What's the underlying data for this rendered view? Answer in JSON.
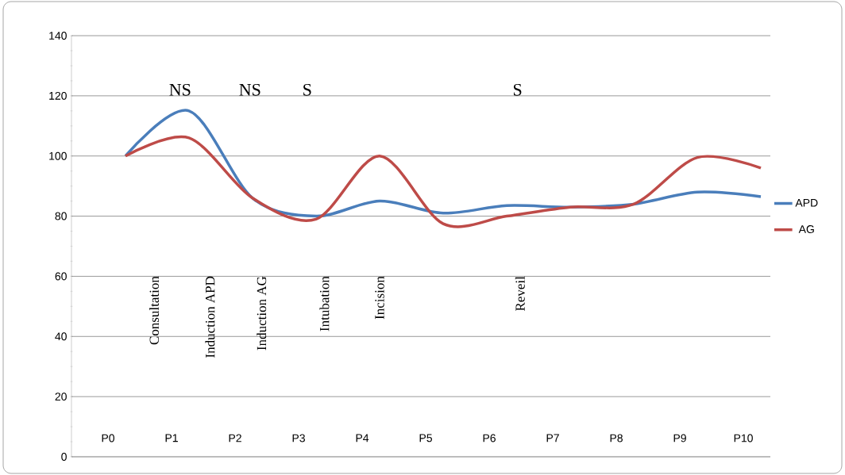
{
  "chart_data": {
    "type": "line",
    "categories": [
      "P0",
      "P1",
      "P2",
      "P3",
      "P4",
      "P5",
      "P6",
      "P7",
      "P8",
      "P9",
      "P10"
    ],
    "series": [
      {
        "name": "APD",
        "color": "#4a7ebb",
        "values": [
          100,
          115,
          86,
          80,
          85,
          81,
          83.5,
          83,
          84,
          88,
          86.5
        ]
      },
      {
        "name": "AG",
        "color": "#be4b48",
        "values": [
          100,
          106,
          86,
          79,
          100,
          77.5,
          80,
          83,
          84,
          99.5,
          96
        ]
      }
    ],
    "ylim": [
      0,
      140
    ],
    "yticks": [
      0,
      20,
      40,
      60,
      80,
      100,
      120,
      140
    ],
    "grid": "y",
    "legend": "right",
    "marker": "none",
    "line_style": "solid",
    "annotations": [
      "NS",
      "NS",
      "S",
      "S",
      "Consultation",
      "Induction APD",
      "Induction AG",
      "Intubation",
      "Incision",
      "Reveil"
    ]
  }
}
